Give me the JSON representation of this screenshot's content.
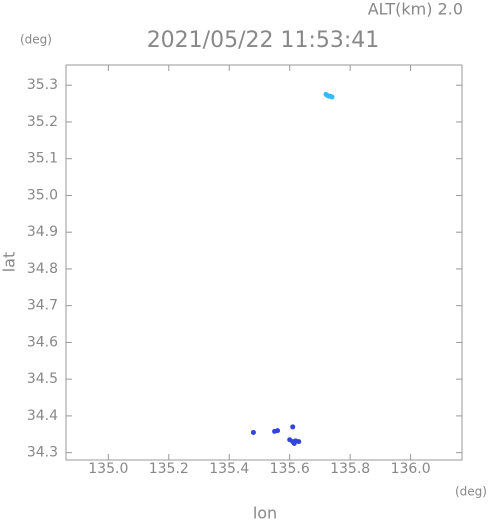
{
  "chart_data": {
    "type": "scatter",
    "title": "2021/05/22 11:53:41",
    "subtitle": "ALT(km) 2.0",
    "y_unit": "(deg)",
    "x_unit": "(deg)",
    "xlabel": "lon",
    "ylabel": "lat",
    "xlim": [
      134.86,
      136.17
    ],
    "ylim": [
      34.28,
      35.355
    ],
    "xticks": [
      {
        "value": 135.0,
        "label": "135.0"
      },
      135.2,
      135.4,
      135.6,
      135.8,
      {
        "value": 136.0,
        "label": "136.0"
      }
    ],
    "yticks": [
      34.3,
      34.4,
      34.5,
      34.6,
      34.7,
      34.8,
      34.9,
      {
        "value": 35.0,
        "label": "35.0"
      },
      35.1,
      35.2,
      35.3
    ],
    "series": [
      {
        "color": "#33bbff",
        "x": [
          135.72,
          135.725,
          135.73,
          135.735,
          135.74
        ],
        "values": [
          35.275,
          35.272,
          35.27,
          35.27,
          35.268
        ]
      },
      {
        "color": "#3344dd",
        "x": [
          135.48,
          135.55,
          135.56,
          135.6,
          135.61,
          135.62,
          135.63,
          135.615,
          135.61
        ],
        "values": [
          34.355,
          34.358,
          34.36,
          34.335,
          34.33,
          34.332,
          34.33,
          34.325,
          34.37
        ]
      }
    ]
  }
}
